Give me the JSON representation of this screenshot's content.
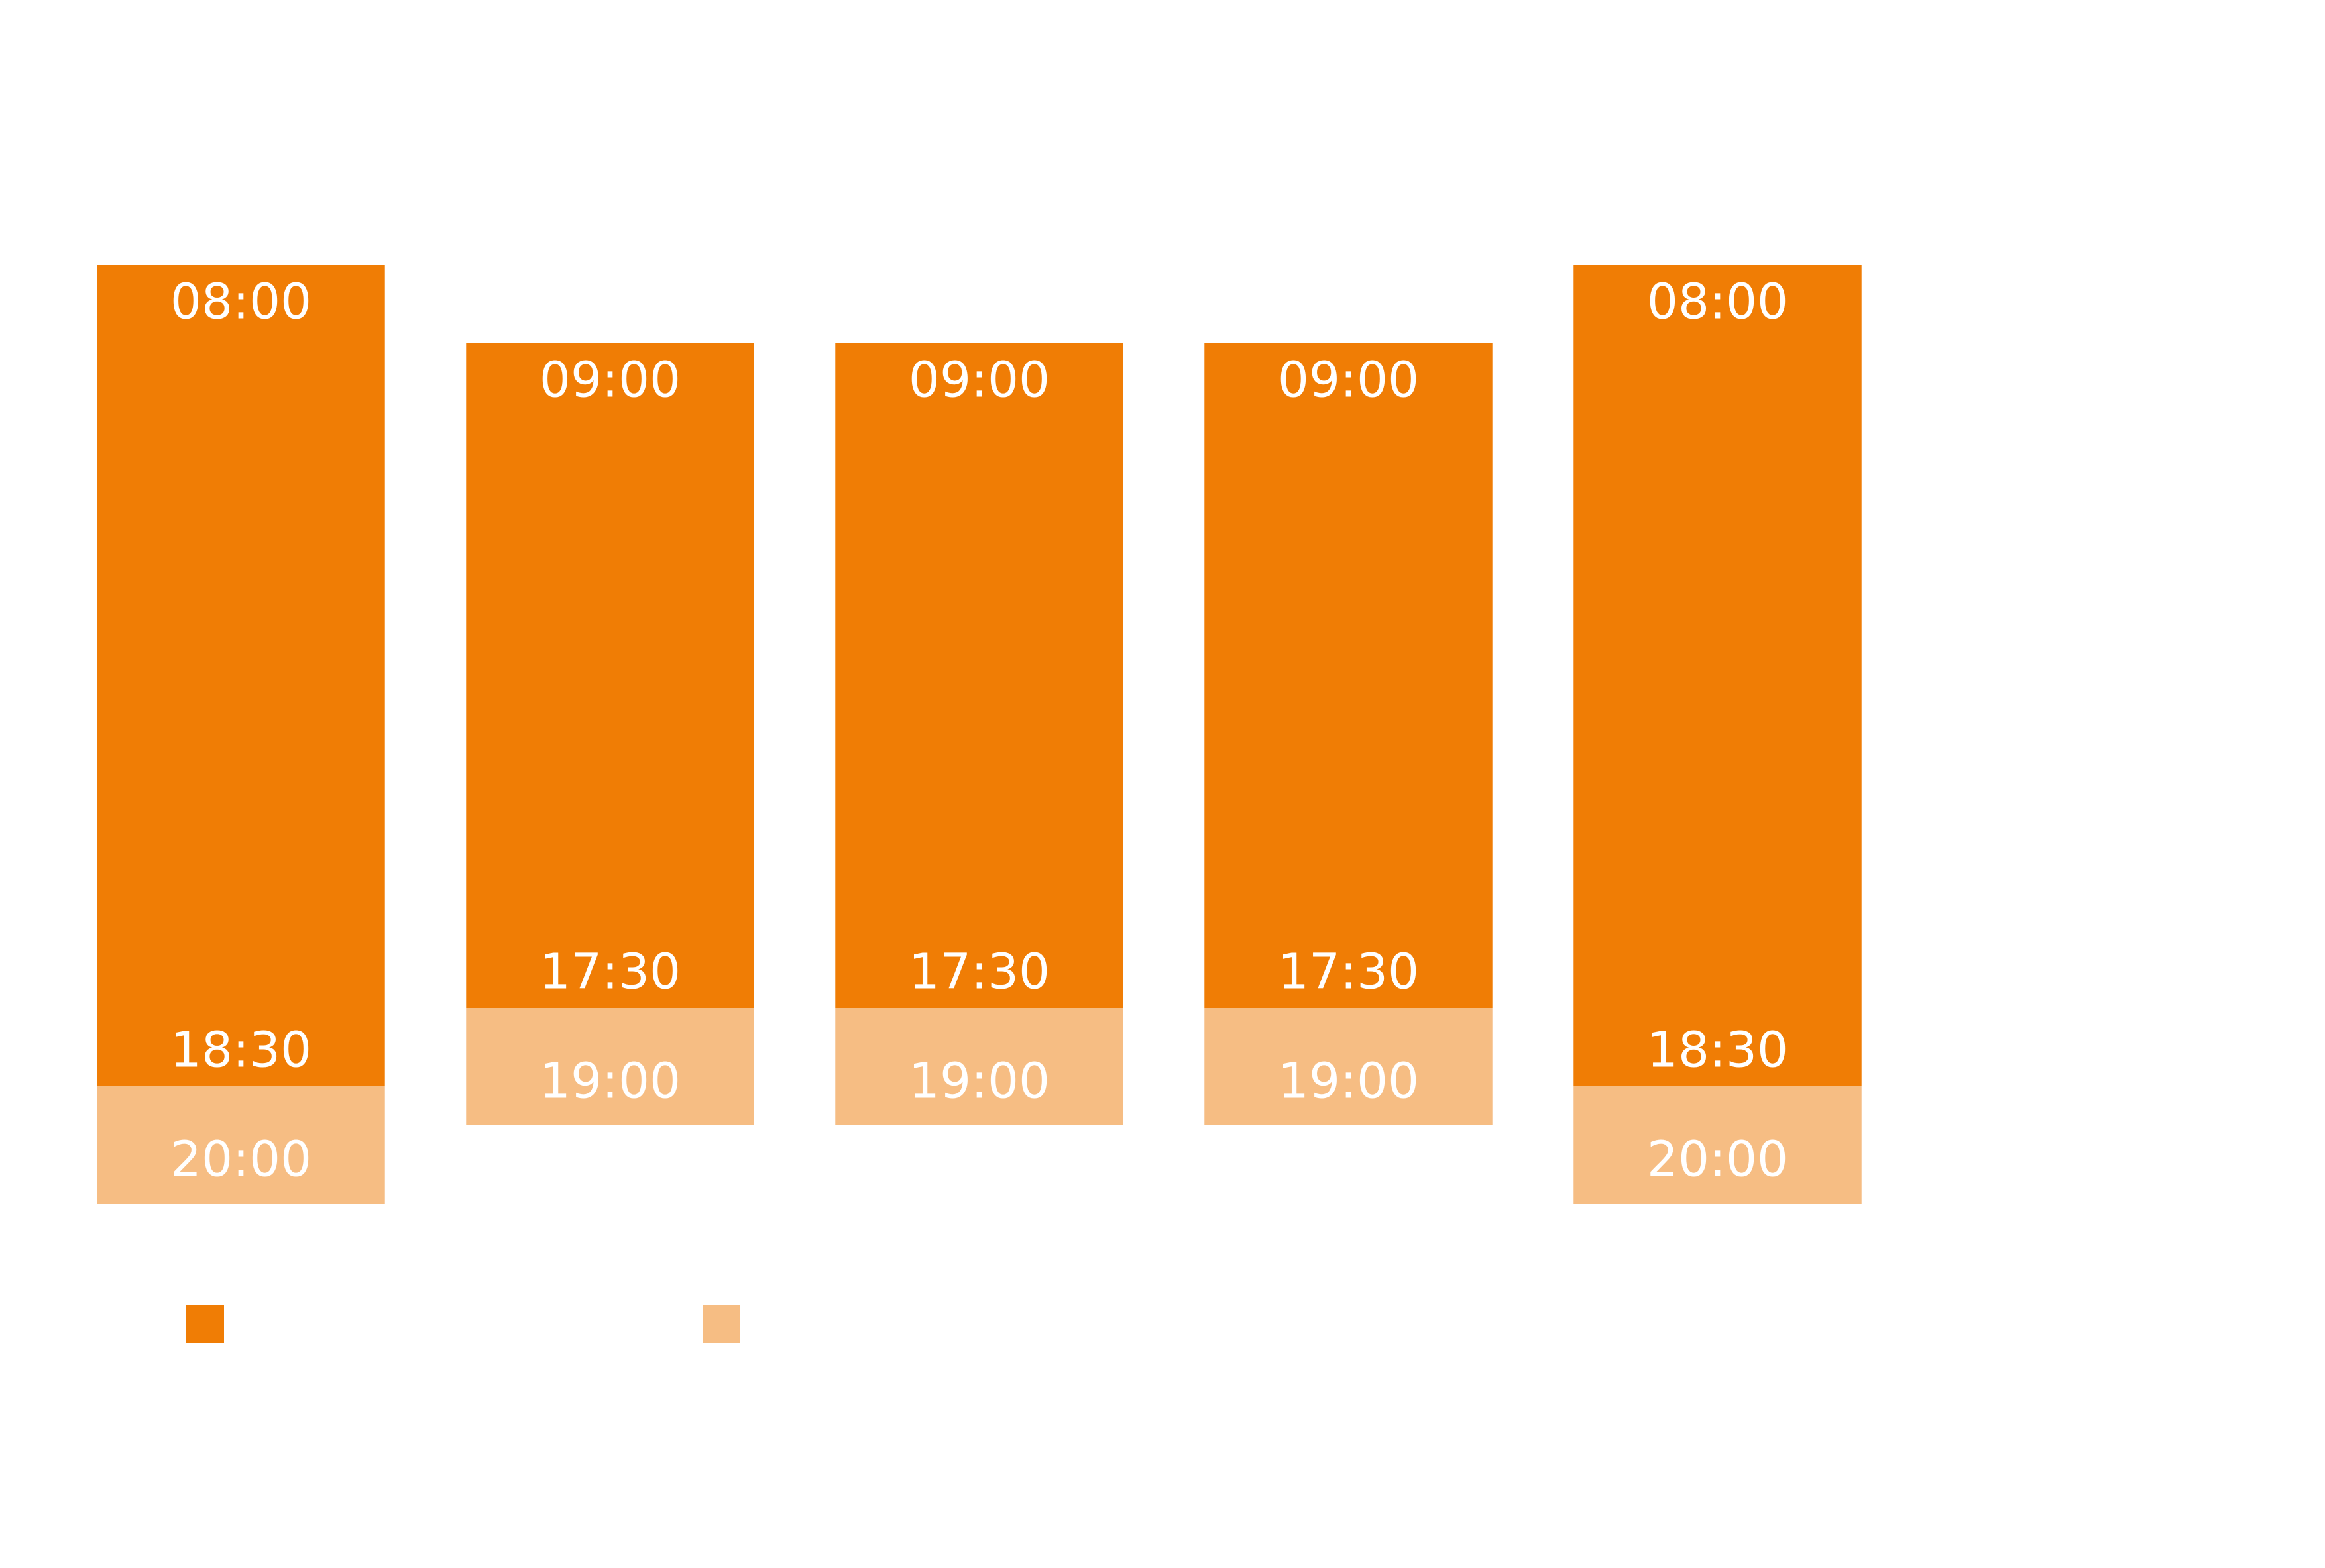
{
  "chart_data": {
    "type": "range-bar",
    "categories": [
      null,
      null,
      null,
      null,
      null
    ],
    "ylim": [
      24,
      5
    ],
    "series": [
      {
        "color": "#f07d05",
        "start": [
          8,
          9,
          9,
          9,
          8
        ],
        "start_labels": [
          "08:00",
          "09:00",
          "09:00",
          "09:00",
          "08:00"
        ],
        "values": [
          18.5,
          17.5,
          17.5,
          17.5,
          18.5
        ],
        "value_labels": [
          "18:30",
          "17:30",
          "17:30",
          "17:30",
          "18:30"
        ]
      },
      {
        "color": "#f6bd83",
        "values": [
          20,
          19,
          19,
          19,
          20
        ],
        "value_labels": [
          "20:00",
          "19:00",
          "19:00",
          "19:00",
          "20:00"
        ]
      }
    ]
  }
}
